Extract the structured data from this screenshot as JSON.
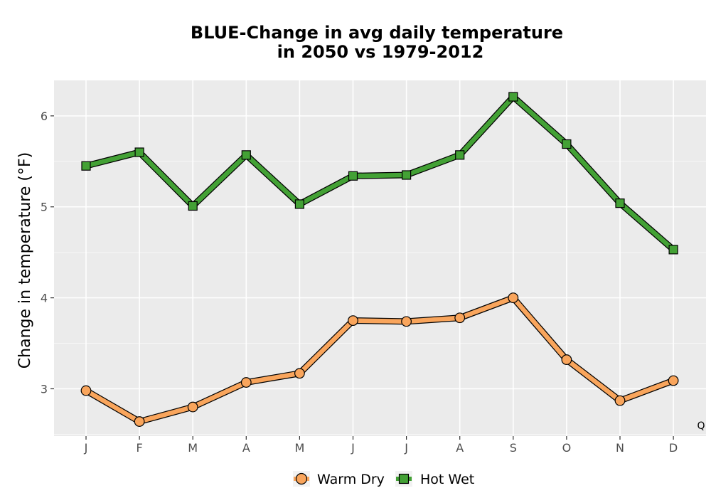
{
  "chart_data": {
    "type": "line",
    "title_line1": "BLUE-Change in avg daily temperature",
    "title_line2": "in 2050 vs 1979-2012",
    "xlabel": "",
    "ylabel": "Change in temperature (°F)",
    "categories": [
      "J",
      "F",
      "M",
      "A",
      "M",
      "J",
      "J",
      "A",
      "S",
      "O",
      "N",
      "D"
    ],
    "ylim": [
      2.48,
      6.39
    ],
    "yticks": [
      3,
      4,
      5,
      6
    ],
    "grid": true,
    "legend_position": "bottom",
    "corner_label": "Q",
    "series": [
      {
        "name": "Warm Dry",
        "marker": "circle",
        "color": "#f9a55c",
        "values": [
          2.98,
          2.64,
          2.8,
          3.07,
          3.17,
          3.75,
          3.74,
          3.78,
          4.0,
          3.32,
          2.87,
          3.09
        ]
      },
      {
        "name": "Hot Wet",
        "marker": "square",
        "color": "#43a135",
        "values": [
          5.45,
          5.6,
          5.01,
          5.57,
          5.03,
          5.34,
          5.35,
          5.57,
          6.21,
          5.69,
          5.04,
          4.53
        ]
      }
    ]
  }
}
